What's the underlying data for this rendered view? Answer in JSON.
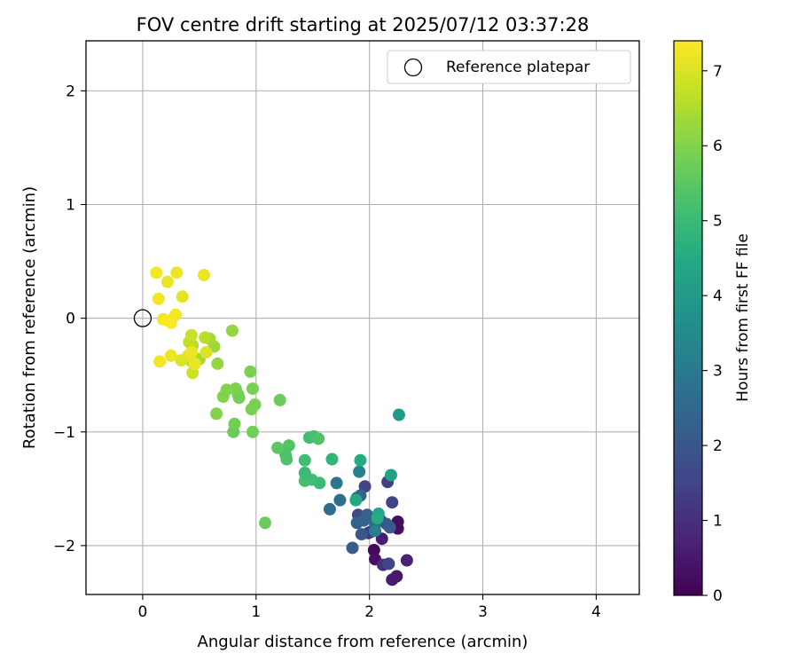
{
  "chart_data": {
    "type": "scatter",
    "title": "FOV centre drift starting at 2025/07/12 03:37:28",
    "xlabel": "Angular distance from reference (arcmin)",
    "ylabel": "Rotation from reference (arcmin)",
    "xlim": [
      -0.5,
      4.38
    ],
    "ylim": [
      -2.43,
      2.44
    ],
    "xticks": [
      0,
      1,
      2,
      3,
      4
    ],
    "xtick_labels": [
      "0",
      "1",
      "2",
      "3",
      "4"
    ],
    "yticks": [
      -2,
      -1,
      0,
      1,
      2
    ],
    "ytick_labels": [
      "−2",
      "−1",
      "0",
      "1",
      "2"
    ],
    "grid": true,
    "legend": {
      "placement": "top-right",
      "entries": [
        "Reference platepar"
      ]
    },
    "reference_point": {
      "x": 0,
      "y": 0
    },
    "colorbar": {
      "label": "Hours from first FF file",
      "range": [
        0,
        7.4
      ],
      "ticks": [
        0,
        1,
        2,
        3,
        4,
        5,
        6,
        7
      ],
      "colormap": "viridis"
    },
    "series": [
      {
        "points": [
          [
            2.04,
            -2.04,
            0.15
          ],
          [
            2.05,
            -2.12,
            0.3
          ],
          [
            2.2,
            -2.3,
            0.6
          ],
          [
            2.24,
            -2.27,
            0.5
          ],
          [
            2.33,
            -2.13,
            0.7
          ],
          [
            2.25,
            -1.85,
            0.3
          ],
          [
            2.25,
            -1.79,
            0.25
          ],
          [
            2.11,
            -1.94,
            0.6
          ],
          [
            2.12,
            -2.17,
            1.0
          ],
          [
            2.17,
            -2.16,
            1.5
          ],
          [
            1.99,
            -1.89,
            1.1
          ],
          [
            2.01,
            -1.88,
            1.3
          ],
          [
            2.2,
            -1.62,
            1.5
          ],
          [
            2.16,
            -1.44,
            1.4
          ],
          [
            1.96,
            -1.48,
            1.5
          ],
          [
            1.9,
            -1.73,
            1.6
          ],
          [
            2.0,
            -1.75,
            1.7
          ],
          [
            2.06,
            -1.8,
            1.8
          ],
          [
            2.1,
            -1.78,
            1.9
          ],
          [
            2.15,
            -1.81,
            2.0
          ],
          [
            2.18,
            -1.84,
            2.1
          ],
          [
            1.93,
            -1.9,
            2.0
          ],
          [
            1.85,
            -2.02,
            2.2
          ],
          [
            1.92,
            -1.56,
            2.4
          ],
          [
            1.89,
            -1.58,
            2.5
          ],
          [
            1.89,
            -1.8,
            2.3
          ],
          [
            1.95,
            -1.78,
            2.4
          ],
          [
            2.05,
            -1.8,
            2.5
          ],
          [
            1.98,
            -1.73,
            2.3
          ],
          [
            1.65,
            -1.68,
            2.6
          ],
          [
            1.74,
            -1.6,
            2.7
          ],
          [
            1.71,
            -1.45,
            2.9
          ],
          [
            1.91,
            -1.35,
            3.2
          ],
          [
            2.05,
            -1.87,
            3.1
          ],
          [
            2.26,
            -0.85,
            4.0
          ],
          [
            2.19,
            -1.38,
            4.2
          ],
          [
            2.08,
            -1.72,
            4.3
          ],
          [
            2.07,
            -1.76,
            4.5
          ],
          [
            1.92,
            -1.25,
            4.5
          ],
          [
            1.88,
            -1.6,
            4.4
          ],
          [
            1.67,
            -1.24,
            4.8
          ],
          [
            1.56,
            -1.45,
            5.0
          ],
          [
            1.49,
            -1.42,
            5.1
          ],
          [
            1.43,
            -1.43,
            5.2
          ],
          [
            1.43,
            -1.36,
            5.0
          ],
          [
            1.43,
            -1.25,
            5.1
          ],
          [
            1.47,
            -1.05,
            5.1
          ],
          [
            1.51,
            -1.04,
            5.2
          ],
          [
            1.55,
            -1.06,
            5.3
          ],
          [
            1.29,
            -1.12,
            5.4
          ],
          [
            1.26,
            -1.2,
            5.3
          ],
          [
            1.27,
            -1.24,
            5.3
          ],
          [
            1.19,
            -1.14,
            5.5
          ],
          [
            1.08,
            -1.8,
            5.7
          ],
          [
            0.8,
            -1.0,
            5.7
          ],
          [
            0.81,
            -0.93,
            5.8
          ],
          [
            0.97,
            -1.0,
            5.8
          ],
          [
            0.96,
            -0.8,
            5.9
          ],
          [
            0.99,
            -0.76,
            5.9
          ],
          [
            0.97,
            -0.62,
            5.9
          ],
          [
            0.95,
            -0.47,
            5.9
          ],
          [
            1.21,
            -0.72,
            5.7
          ],
          [
            0.82,
            -0.62,
            5.9
          ],
          [
            0.84,
            -0.67,
            5.9
          ],
          [
            0.85,
            -0.7,
            5.8
          ],
          [
            0.74,
            -0.63,
            6.0
          ],
          [
            0.71,
            -0.69,
            6.0
          ],
          [
            0.65,
            -0.84,
            6.0
          ],
          [
            0.79,
            -0.11,
            6.2
          ],
          [
            0.66,
            -0.4,
            6.2
          ],
          [
            0.63,
            -0.25,
            6.3
          ],
          [
            0.59,
            -0.18,
            6.4
          ],
          [
            0.55,
            -0.17,
            6.6
          ],
          [
            0.5,
            -0.36,
            6.4
          ],
          [
            0.44,
            -0.24,
            6.6
          ],
          [
            0.41,
            -0.21,
            6.7
          ],
          [
            0.43,
            -0.15,
            6.8
          ],
          [
            0.43,
            -0.38,
            6.7
          ],
          [
            0.44,
            -0.48,
            6.8
          ],
          [
            0.56,
            -0.3,
            7.0
          ],
          [
            0.34,
            -0.37,
            7.0
          ],
          [
            0.4,
            -0.33,
            7.1
          ],
          [
            0.43,
            -0.3,
            7.2
          ],
          [
            0.46,
            -0.4,
            7.2
          ],
          [
            0.25,
            -0.33,
            7.2
          ],
          [
            0.15,
            -0.38,
            7.3
          ],
          [
            0.18,
            -0.01,
            7.3
          ],
          [
            0.22,
            -0.02,
            7.4
          ],
          [
            0.25,
            -0.04,
            7.4
          ],
          [
            0.29,
            0.03,
            7.3
          ],
          [
            0.14,
            0.17,
            7.3
          ],
          [
            0.12,
            0.4,
            7.3
          ],
          [
            0.22,
            0.32,
            7.2
          ],
          [
            0.3,
            0.4,
            7.2
          ],
          [
            0.35,
            0.19,
            7.1
          ],
          [
            0.54,
            0.38,
            7.2
          ]
        ]
      }
    ]
  }
}
